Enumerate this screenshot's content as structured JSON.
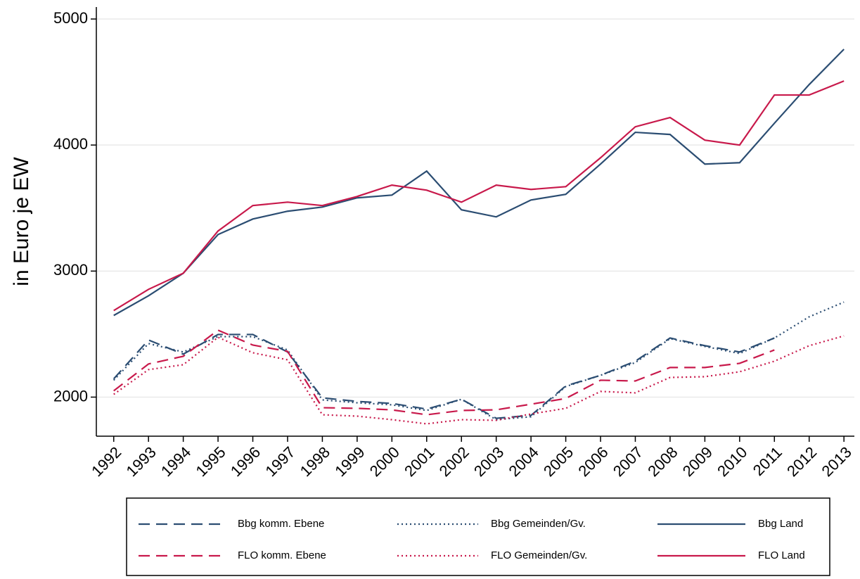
{
  "chart_data": {
    "type": "line",
    "y_label": "in Euro je EW",
    "x": [
      1992,
      1993,
      1994,
      1995,
      1996,
      1997,
      1998,
      1999,
      2000,
      2001,
      2002,
      2003,
      2004,
      2005,
      2006,
      2007,
      2008,
      2009,
      2010,
      2011,
      2012,
      2013
    ],
    "xlim": [
      1991.5,
      2013.3
    ],
    "xticks": [
      1992,
      1993,
      1994,
      1995,
      1996,
      1997,
      1998,
      1999,
      2000,
      2001,
      2002,
      2003,
      2004,
      2005,
      2006,
      2007,
      2008,
      2009,
      2010,
      2011,
      2012,
      2013
    ],
    "ylim": [
      1690,
      5095
    ],
    "yticks": [
      2000,
      3000,
      4000,
      5000
    ],
    "grid": true,
    "legend": "bottom",
    "series": [
      {
        "name": "Bbg komm. Ebene",
        "color": "#2b4d72",
        "style": "dashed",
        "values": [
          2145,
          2453,
          2341,
          2497,
          2497,
          2358,
          1994,
          1966,
          1950,
          1905,
          1983,
          1832,
          1855,
          2089,
          2173,
          2285,
          2469,
          2408,
          2358,
          2469,
          null,
          null
        ]
      },
      {
        "name": "Bbg Gemeinden/Gv.",
        "color": "#2b4d72",
        "style": "dotted",
        "values": [
          2134,
          2425,
          2358,
          2480,
          2480,
          2374,
          1978,
          1955,
          1939,
          1894,
          1983,
          1821,
          1844,
          2084,
          2173,
          2274,
          2464,
          2402,
          2346,
          2469,
          2637,
          2754
        ]
      },
      {
        "name": "Bbg Land",
        "color": "#2b4d72",
        "style": "solid",
        "values": [
          2648,
          2804,
          2983,
          3290,
          3413,
          3475,
          3508,
          3581,
          3603,
          3793,
          3486,
          3430,
          3564,
          3609,
          3849,
          4101,
          4084,
          3849,
          3860,
          4173,
          4480,
          4760
        ]
      },
      {
        "name": "FLO komm. Ebene",
        "color": "#c8194b",
        "style": "dashed",
        "values": [
          2050,
          2263,
          2324,
          2531,
          2413,
          2363,
          1916,
          1911,
          1899,
          1860,
          1894,
          1899,
          1944,
          1989,
          2134,
          2128,
          2235,
          2235,
          2268,
          2374,
          null,
          null
        ]
      },
      {
        "name": "FLO Gemeinden/Gv.",
        "color": "#c8194b",
        "style": "dotted",
        "values": [
          2022,
          2218,
          2257,
          2475,
          2352,
          2296,
          1860,
          1849,
          1821,
          1788,
          1821,
          1816,
          1866,
          1911,
          2045,
          2034,
          2156,
          2162,
          2201,
          2285,
          2408,
          2486
        ]
      },
      {
        "name": "FLO Land",
        "color": "#c8194b",
        "style": "solid",
        "values": [
          2687,
          2855,
          2983,
          3318,
          3520,
          3547,
          3520,
          3592,
          3682,
          3642,
          3547,
          3682,
          3648,
          3670,
          3899,
          4145,
          4218,
          4039,
          4000,
          4397,
          4397,
          4508
        ]
      }
    ]
  }
}
